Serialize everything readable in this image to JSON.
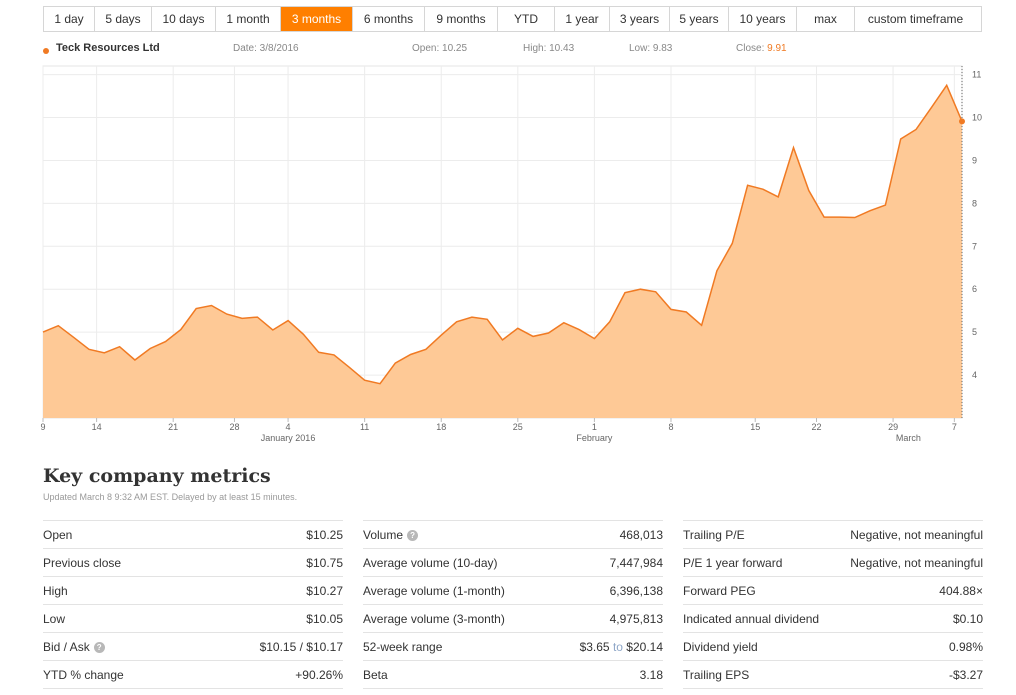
{
  "tabs": [
    {
      "label": "1 day",
      "width": 51,
      "active": false
    },
    {
      "label": "5 days",
      "width": 57,
      "active": false
    },
    {
      "label": "10 days",
      "width": 64,
      "active": false
    },
    {
      "label": "1 month",
      "width": 65,
      "active": false
    },
    {
      "label": "3 months",
      "width": 72,
      "active": true
    },
    {
      "label": "6 months",
      "width": 72,
      "active": false
    },
    {
      "label": "9 months",
      "width": 73,
      "active": false
    },
    {
      "label": "YTD",
      "width": 57,
      "active": false
    },
    {
      "label": "1 year",
      "width": 55,
      "active": false
    },
    {
      "label": "3 years",
      "width": 60,
      "active": false
    },
    {
      "label": "5 years",
      "width": 59,
      "active": false
    },
    {
      "label": "10 years",
      "width": 68,
      "active": false
    },
    {
      "label": "max",
      "width": 58,
      "active": false
    },
    {
      "label": "custom timeframe",
      "width": 121,
      "active": false
    }
  ],
  "header": {
    "company": "Teck Resources Ltd",
    "date": "Date: 3/8/2016",
    "open": "Open: 10.25",
    "high": "High: 10.43",
    "low": "Low: 9.83",
    "close_label": "Close: ",
    "close_value": "9.91"
  },
  "chart_data": {
    "type": "area",
    "x_tick_labels": [
      "9",
      "14",
      "21",
      "28",
      "4",
      "11",
      "18",
      "25",
      "1",
      "8",
      "15",
      "22",
      "29",
      "7"
    ],
    "month_labels": [
      "January 2016",
      "February",
      "March"
    ],
    "y_ticks": [
      4,
      5,
      6,
      7,
      8,
      9,
      10,
      11
    ],
    "ylim": [
      3,
      11.2
    ],
    "grid": true,
    "series": [
      {
        "values": [
          5.0,
          5.15,
          4.88,
          4.6,
          4.52,
          4.66,
          4.35,
          4.62,
          4.78,
          5.06,
          5.55,
          5.62,
          5.42,
          5.32,
          5.35,
          5.05,
          5.27,
          4.95,
          4.53,
          4.47,
          4.18,
          3.88,
          3.8,
          4.28,
          4.48,
          4.6,
          4.93,
          5.24,
          5.35,
          5.3,
          4.82,
          5.09,
          4.9,
          4.98,
          5.22,
          5.06,
          4.85,
          5.24,
          5.92,
          6.0,
          5.94,
          5.53,
          5.47,
          5.16,
          6.43,
          7.07,
          8.42,
          8.33,
          8.15,
          9.3,
          8.3,
          7.68,
          7.68,
          7.67,
          7.83,
          7.96,
          9.5,
          9.72,
          10.23,
          10.75,
          9.91
        ]
      }
    ],
    "colors": {
      "fill": "#fec996",
      "line": "#f07a23"
    }
  },
  "metrics": {
    "title": "Key company metrics",
    "subtitle": "Updated March 8 9:32 AM EST. Delayed by at least 15 minutes.",
    "col1": [
      {
        "label": "Open",
        "value": "$10.25"
      },
      {
        "label": "Previous close",
        "value": "$10.75"
      },
      {
        "label": "High",
        "value": "$10.27"
      },
      {
        "label": "Low",
        "value": "$10.05"
      },
      {
        "label": "Bid / Ask",
        "value": "$10.15 / $10.17",
        "info": true
      },
      {
        "label": "YTD % change",
        "value": "+90.26%"
      }
    ],
    "col2": [
      {
        "label": "Volume",
        "value": "468,013",
        "info": true
      },
      {
        "label": "Average volume (10-day)",
        "value": "7,447,984"
      },
      {
        "label": "Average volume (1-month)",
        "value": "6,396,138"
      },
      {
        "label": "Average volume (3-month)",
        "value": "4,975,813"
      },
      {
        "label": "52-week range",
        "value_low": "$3.65",
        "value_sep": " to ",
        "value_high": "$20.14",
        "range": true
      },
      {
        "label": "Beta",
        "value": "3.18"
      }
    ],
    "col3": [
      {
        "label": "Trailing P/E",
        "value": "Negative, not meaningful"
      },
      {
        "label": "P/E 1 year forward",
        "value": "Negative, not meaningful"
      },
      {
        "label": "Forward PEG",
        "value": "404.88×"
      },
      {
        "label": "Indicated annual dividend",
        "value": "$0.10"
      },
      {
        "label": "Dividend yield",
        "value": "0.98%"
      },
      {
        "label": "Trailing EPS",
        "value": "-$3.27"
      }
    ]
  }
}
